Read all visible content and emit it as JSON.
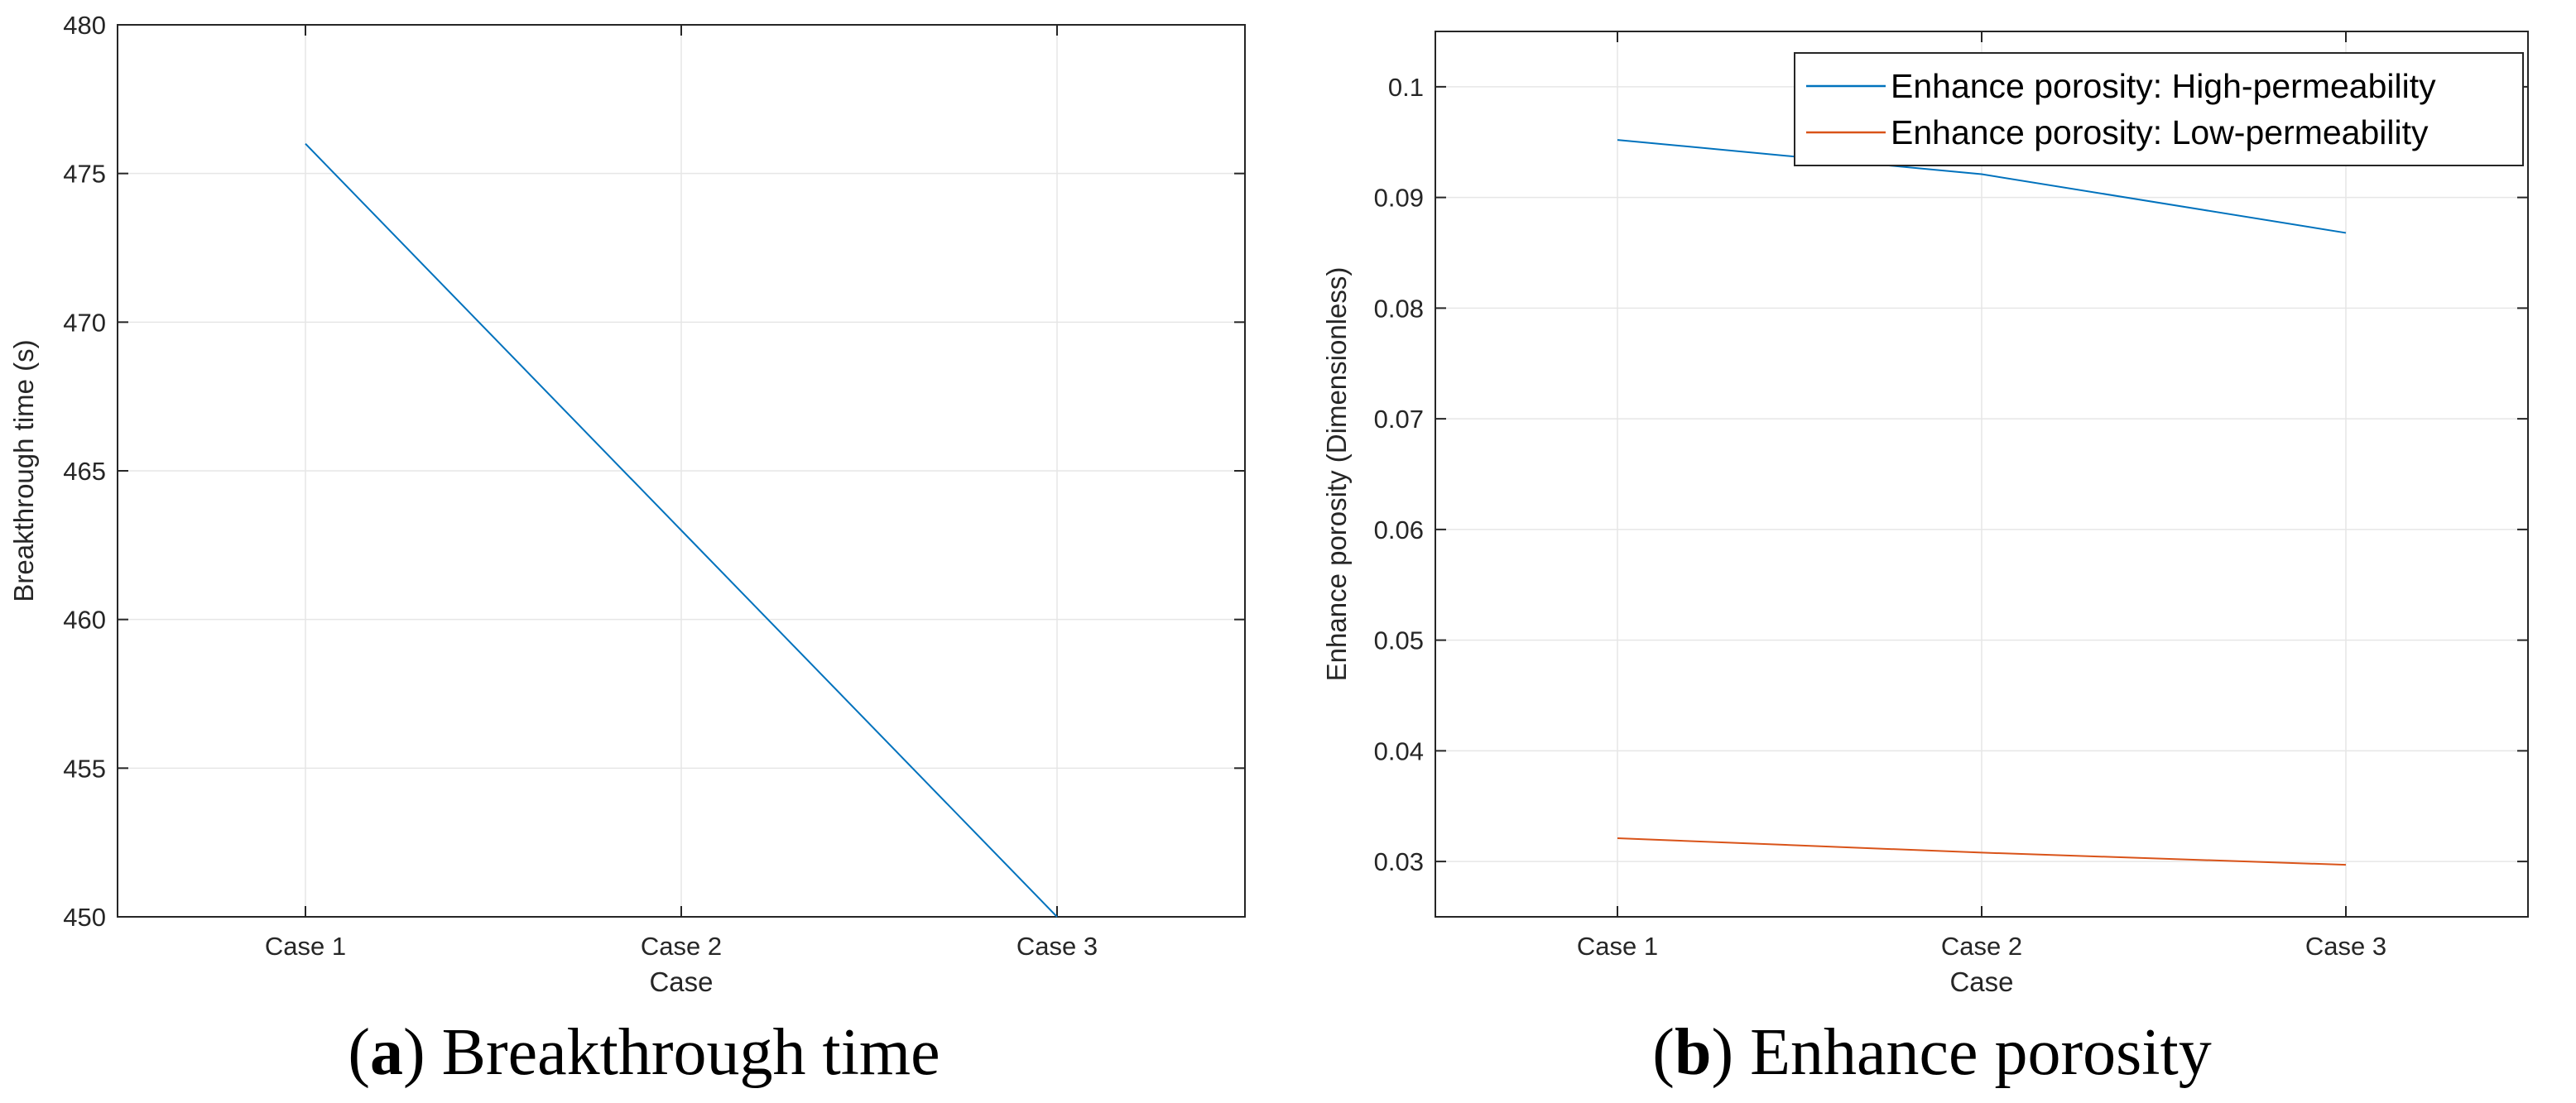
{
  "chart_data": [
    {
      "type": "line",
      "panel_letter": "a",
      "caption_title": "Breakthrough time",
      "categories": [
        "Case 1",
        "Case 2",
        "Case 3"
      ],
      "series": [
        {
          "values": [
            476,
            463,
            450
          ],
          "color": "#0072BD"
        }
      ],
      "xlabel": "Case",
      "ylabel": "Breakthrough time (s)",
      "ylim": [
        450,
        480
      ],
      "yticks": [
        450,
        455,
        460,
        465,
        470,
        475,
        480
      ],
      "grid": true,
      "legend": null
    },
    {
      "type": "line",
      "panel_letter": "b",
      "caption_title": "Enhance porosity",
      "categories": [
        "Case 1",
        "Case 2",
        "Case 3"
      ],
      "series": [
        {
          "name": "Enhance porosity: High-permeability",
          "values": [
            0.0952,
            0.0921,
            0.0868
          ],
          "color": "#0072BD"
        },
        {
          "name": "Enhance porosity: Low-permeability",
          "values": [
            0.0321,
            0.0308,
            0.0297
          ],
          "color": "#D95319"
        }
      ],
      "xlabel": "Case",
      "ylabel": "Enhance porosity (Dimensionless)",
      "ylim": [
        0.025,
        0.105
      ],
      "yticks": [
        0.03,
        0.04,
        0.05,
        0.06,
        0.07,
        0.08,
        0.09,
        0.1
      ],
      "yticklabels": [
        "0.03",
        "0.04",
        "0.05",
        "0.06",
        "0.07",
        "0.08",
        "0.09",
        "0.1"
      ],
      "grid": true,
      "legend": "top-right"
    }
  ]
}
